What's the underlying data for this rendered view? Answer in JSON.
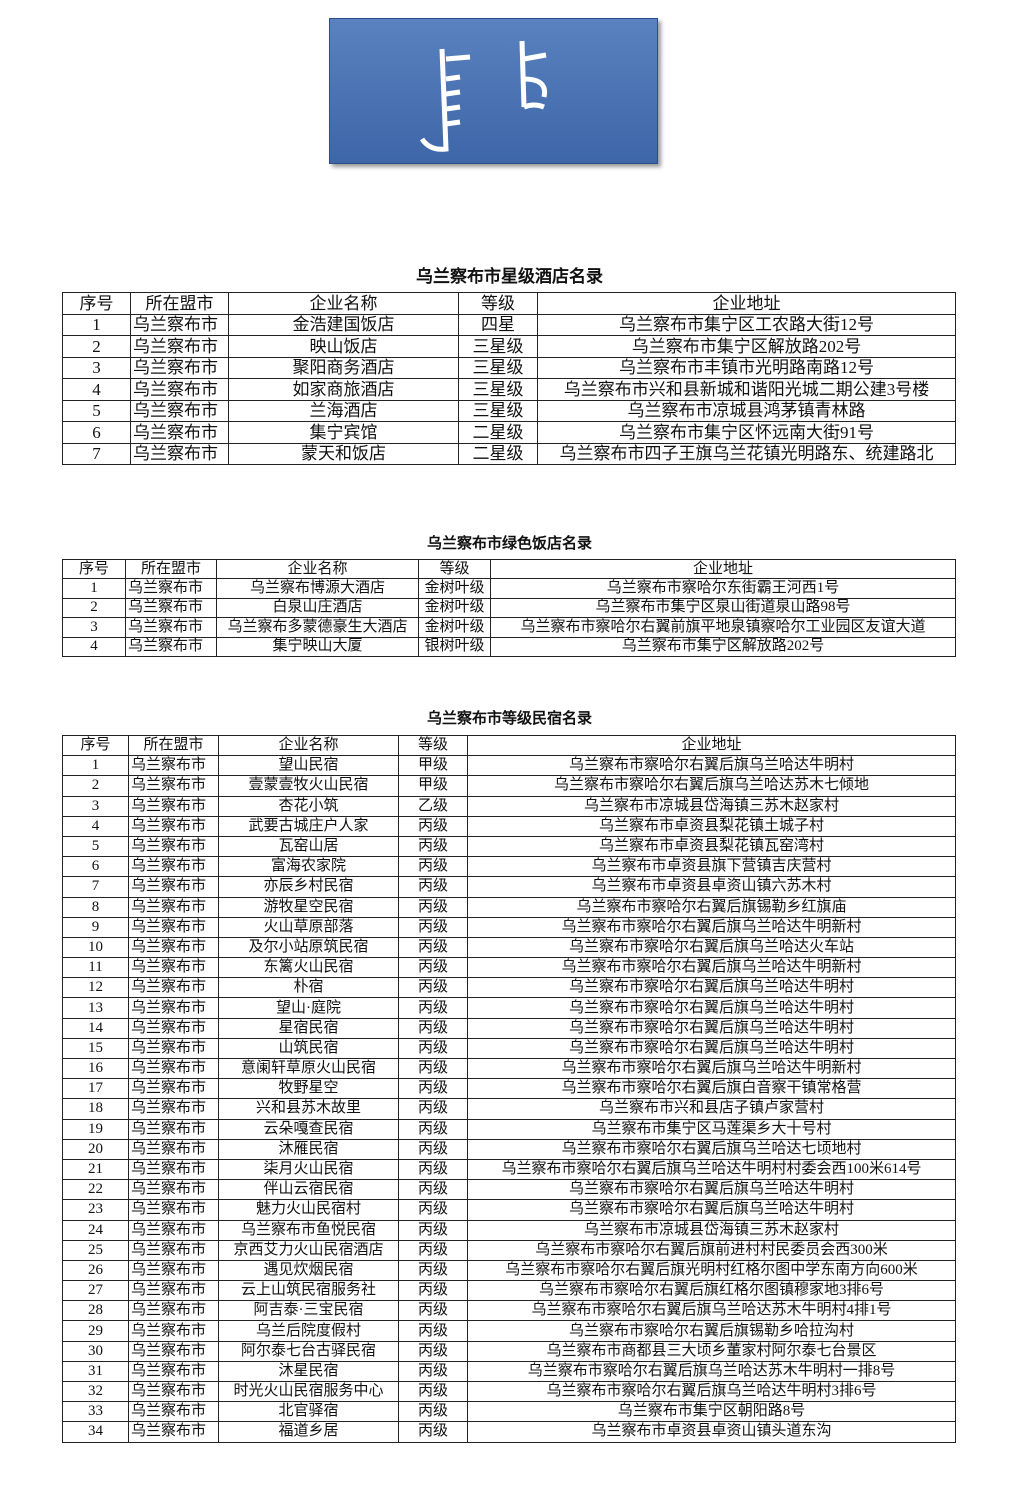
{
  "tables": [
    {
      "title": "乌兰察布市星级酒店名录",
      "columns": [
        "序号",
        "所在盟市",
        "企业名称",
        "等级",
        "企业地址"
      ],
      "rows": [
        [
          "1",
          "乌兰察布市",
          "金浩建国饭店",
          "四星",
          "乌兰察布市集宁区工农路大街12号"
        ],
        [
          "2",
          "乌兰察布市",
          "映山饭店",
          "三星级",
          "乌兰察布市集宁区解放路202号"
        ],
        [
          "3",
          "乌兰察布市",
          "聚阳商务酒店",
          "三星级",
          "乌兰察布市丰镇市光明路南路12号"
        ],
        [
          "4",
          "乌兰察布市",
          "如家商旅酒店",
          "三星级",
          "乌兰察布市兴和县新城和谐阳光城二期公建3号楼"
        ],
        [
          "5",
          "乌兰察布市",
          "兰海酒店",
          "三星级",
          "乌兰察布市凉城县鸿茅镇青林路"
        ],
        [
          "6",
          "乌兰察布市",
          "集宁宾馆",
          "二星级",
          "乌兰察布市集宁区怀远南大街91号"
        ],
        [
          "7",
          "乌兰察布市",
          "蒙天和饭店",
          "二星级",
          "乌兰察布市四子王旗乌兰花镇光明路东、统建路北"
        ]
      ]
    },
    {
      "title": "乌兰察布市绿色饭店名录",
      "columns": [
        "序号",
        "所在盟市",
        "企业名称",
        "等级",
        "企业地址"
      ],
      "rows": [
        [
          "1",
          "乌兰察布市",
          "乌兰察布博源大酒店",
          "金树叶级",
          "乌兰察布市察哈尔东街霸王河西1号"
        ],
        [
          "2",
          "乌兰察布市",
          "白泉山庄酒店",
          "金树叶级",
          "乌兰察布市集宁区泉山街道泉山路98号"
        ],
        [
          "3",
          "乌兰察布市",
          "乌兰察布多蒙德豪生大酒店",
          "金树叶级",
          "乌兰察布市察哈尔右翼前旗平地泉镇察哈尔工业园区友谊大道"
        ],
        [
          "4",
          "乌兰察布市",
          "集宁映山大厦",
          "银树叶级",
          "乌兰察布市集宁区解放路202号"
        ]
      ]
    },
    {
      "title": "乌兰察布市等级民宿名录",
      "columns": [
        "序号",
        "所在盟市",
        "企业名称",
        "等级",
        "企业地址"
      ],
      "rows": [
        [
          "1",
          "乌兰察布市",
          "望山民宿",
          "甲级",
          "乌兰察布市察哈尔右翼后旗乌兰哈达牛明村"
        ],
        [
          "2",
          "乌兰察布市",
          "壹蒙壹牧火山民宿",
          "甲级",
          "乌兰察布市察哈尔右翼后旗乌兰哈达苏木七倾地"
        ],
        [
          "3",
          "乌兰察布市",
          "杏花小筑",
          "乙级",
          "乌兰察布市凉城县岱海镇三苏木赵家村"
        ],
        [
          "4",
          "乌兰察布市",
          "武要古城庄户人家",
          "丙级",
          "乌兰察布市卓资县梨花镇土城子村"
        ],
        [
          "5",
          "乌兰察布市",
          "瓦窑山居",
          "丙级",
          "乌兰察布市卓资县梨花镇瓦窑湾村"
        ],
        [
          "6",
          "乌兰察布市",
          "富海农家院",
          "丙级",
          "乌兰察布市卓资县旗下营镇吉庆营村"
        ],
        [
          "7",
          "乌兰察布市",
          "亦辰乡村民宿",
          "丙级",
          "乌兰察布市卓资县卓资山镇六苏木村"
        ],
        [
          "8",
          "乌兰察布市",
          "游牧星空民宿",
          "丙级",
          "乌兰察布市察哈尔右翼后旗锡勒乡红旗庙"
        ],
        [
          "9",
          "乌兰察布市",
          "火山草原部落",
          "丙级",
          "乌兰察布市察哈尔右翼后旗乌兰哈达牛明新村"
        ],
        [
          "10",
          "乌兰察布市",
          "及尔小站原筑民宿",
          "丙级",
          "乌兰察布市察哈尔右翼后旗乌兰哈达火车站"
        ],
        [
          "11",
          "乌兰察布市",
          "东篱火山民宿",
          "丙级",
          "乌兰察布市察哈尔右翼后旗乌兰哈达牛明新村"
        ],
        [
          "12",
          "乌兰察布市",
          "朴宿",
          "丙级",
          "乌兰察布市察哈尔右翼后旗乌兰哈达牛明村"
        ],
        [
          "13",
          "乌兰察布市",
          "望山·庭院",
          "丙级",
          "乌兰察布市察哈尔右翼后旗乌兰哈达牛明村"
        ],
        [
          "14",
          "乌兰察布市",
          "星宿民宿",
          "丙级",
          "乌兰察布市察哈尔右翼后旗乌兰哈达牛明村"
        ],
        [
          "15",
          "乌兰察布市",
          "山筑民宿",
          "丙级",
          "乌兰察布市察哈尔右翼后旗乌兰哈达牛明村"
        ],
        [
          "16",
          "乌兰察布市",
          "意阑轩草原火山民宿",
          "丙级",
          "乌兰察布市察哈尔右翼后旗乌兰哈达牛明新村"
        ],
        [
          "17",
          "乌兰察布市",
          "牧野星空",
          "丙级",
          "乌兰察布市察哈尔右翼后旗白音察干镇常格营"
        ],
        [
          "18",
          "乌兰察布市",
          "兴和县苏木故里",
          "丙级",
          "乌兰察布市兴和县店子镇卢家营村"
        ],
        [
          "19",
          "乌兰察布市",
          "云朵嘎查民宿",
          "丙级",
          "乌兰察布市集宁区马莲渠乡大十号村"
        ],
        [
          "20",
          "乌兰察布市",
          "沐雁民宿",
          "丙级",
          "乌兰察布市察哈尔右翼后旗乌兰哈达七顷地村"
        ],
        [
          "21",
          "乌兰察布市",
          "柒月火山民宿",
          "丙级",
          "乌兰察布市察哈尔右翼后旗乌兰哈达牛明村村委会西100米614号"
        ],
        [
          "22",
          "乌兰察布市",
          "伴山云宿民宿",
          "丙级",
          "乌兰察布市察哈尔右翼后旗乌兰哈达牛明村"
        ],
        [
          "23",
          "乌兰察布市",
          "魅力火山民宿村",
          "丙级",
          "乌兰察布市察哈尔右翼后旗乌兰哈达牛明村"
        ],
        [
          "24",
          "乌兰察布市",
          "乌兰察布市鱼悦民宿",
          "丙级",
          "乌兰察布市凉城县岱海镇三苏木赵家村"
        ],
        [
          "25",
          "乌兰察布市",
          "京西艾力火山民宿酒店",
          "丙级",
          "乌兰察布市察哈尔右翼后旗前进村村民委员会西300米"
        ],
        [
          "26",
          "乌兰察布市",
          "遇见炊烟民宿",
          "丙级",
          "乌兰察布市察哈尔右翼后旗光明村红格尔图中学东南方向600米"
        ],
        [
          "27",
          "乌兰察布市",
          "云上山筑民宿服务社",
          "丙级",
          "乌兰察布市察哈尔右翼后旗红格尔图镇穆家地3排6号"
        ],
        [
          "28",
          "乌兰察布市",
          "阿吉泰·三宝民宿",
          "丙级",
          "乌兰察布市察哈尔右翼后旗乌兰哈达苏木牛明村4排1号"
        ],
        [
          "29",
          "乌兰察布市",
          "乌兰后院度假村",
          "丙级",
          "乌兰察布市察哈尔右翼后旗锡勒乡哈拉沟村"
        ],
        [
          "30",
          "乌兰察布市",
          "阿尔泰七台古驿民宿",
          "丙级",
          "乌兰察布市商都县三大顷乡董家村阿尔泰七台景区"
        ],
        [
          "31",
          "乌兰察布市",
          "沐星民宿",
          "丙级",
          "乌兰察布市察哈尔右翼后旗乌兰哈达苏木牛明村一排8号"
        ],
        [
          "32",
          "乌兰察布市",
          "时光火山民宿服务中心",
          "丙级",
          "乌兰察布市察哈尔右翼后旗乌兰哈达牛明村3排6号"
        ],
        [
          "33",
          "乌兰察布市",
          "北官驿宿",
          "丙级",
          "乌兰察布市集宁区朝阳路8号"
        ],
        [
          "34",
          "乌兰察布市",
          "福道乡居",
          "丙级",
          "乌兰察布市卓资县卓资山镇头道东沟"
        ]
      ]
    }
  ]
}
